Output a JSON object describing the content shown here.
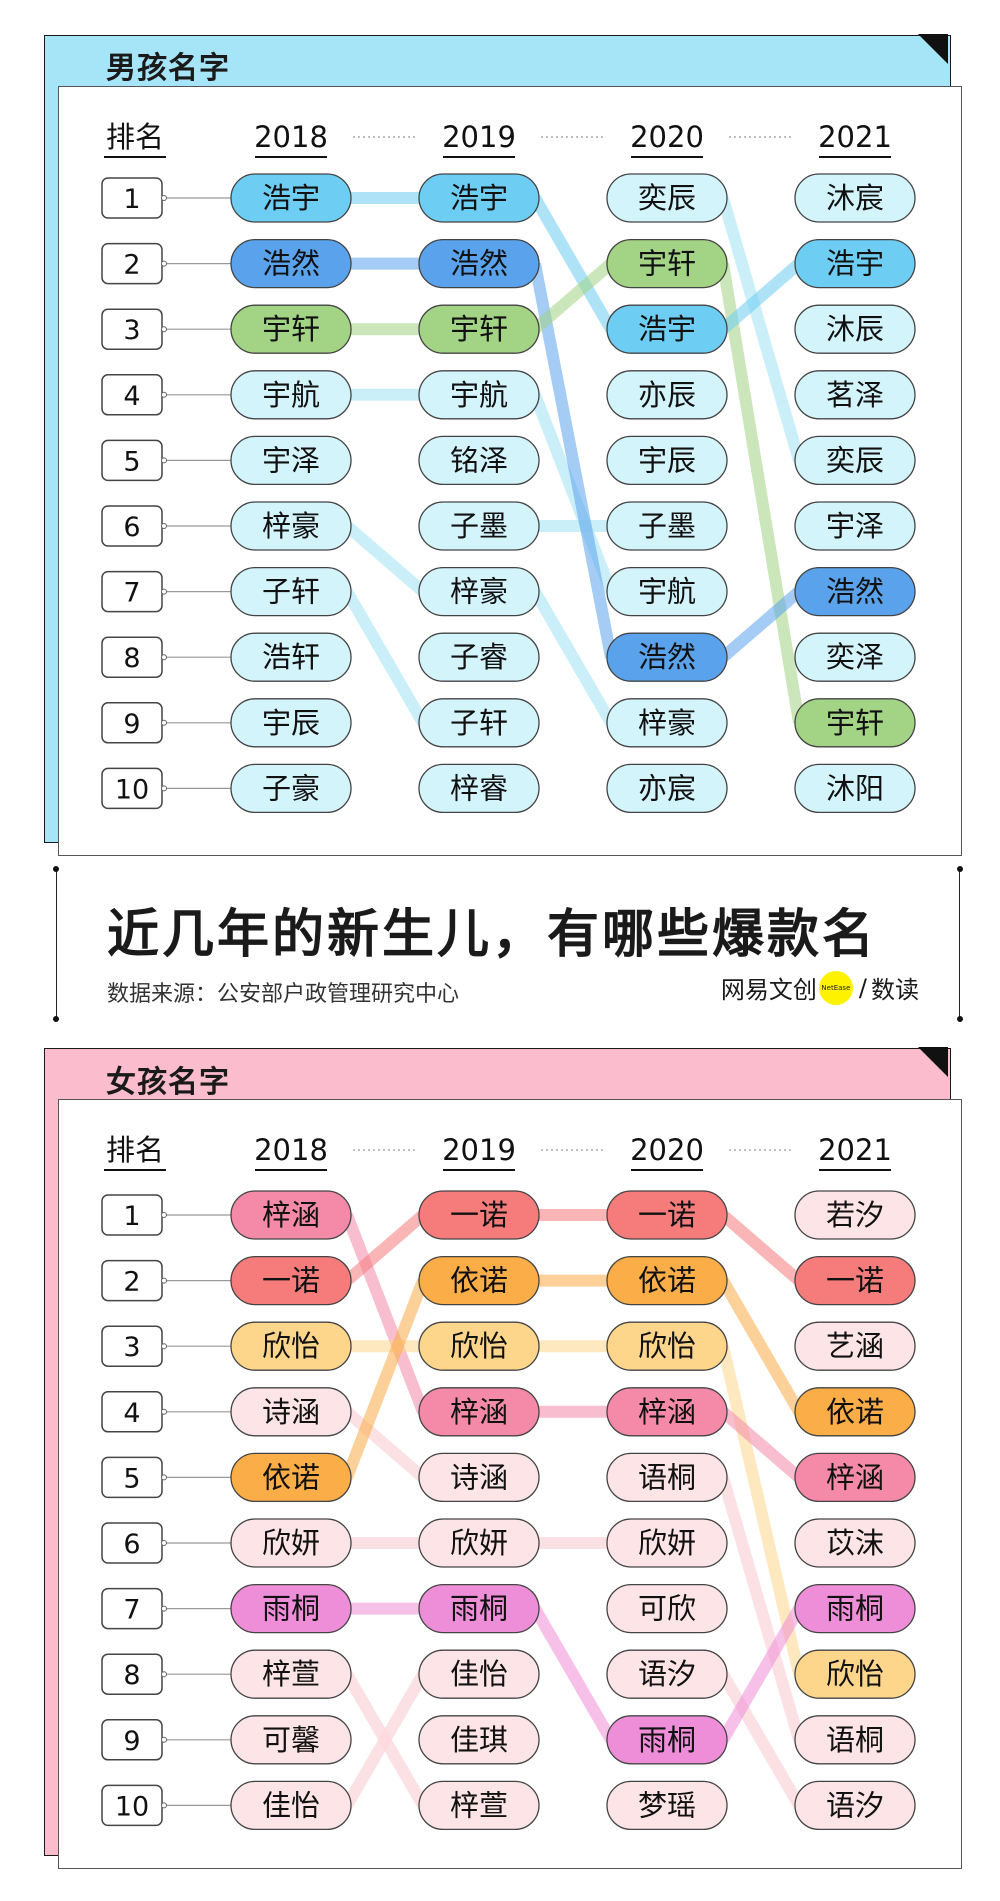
{
  "main_title": "近几年的新生儿，有哪些爆款名",
  "source": "数据来源：公安部户政管理研究中心",
  "logo": {
    "text_left": "网易文创",
    "badge": "NetEase",
    "separator": "/",
    "text_right": "数读"
  },
  "colors": {
    "boys_bg": "#a6e4f7",
    "girls_bg": "#fbbccd"
  },
  "chart_data": [
    {
      "type": "table",
      "title": "男孩名字",
      "rank_header": "排名",
      "years": [
        "2018",
        "2019",
        "2020",
        "2021"
      ],
      "ranks": [
        "1",
        "2",
        "3",
        "4",
        "5",
        "6",
        "7",
        "8",
        "9",
        "10"
      ],
      "columns": [
        [
          "浩宇",
          "浩然",
          "宇轩",
          "宇航",
          "宇泽",
          "梓豪",
          "子轩",
          "浩轩",
          "宇辰",
          "子豪"
        ],
        [
          "浩宇",
          "浩然",
          "宇轩",
          "宇航",
          "铭泽",
          "子墨",
          "梓豪",
          "子睿",
          "子轩",
          "梓睿"
        ],
        [
          "奕辰",
          "宇轩",
          "浩宇",
          "亦辰",
          "宇辰",
          "子墨",
          "宇航",
          "浩然",
          "梓豪",
          "亦宸"
        ],
        [
          "沐宸",
          "浩宇",
          "沐辰",
          "茗泽",
          "奕辰",
          "宇泽",
          "浩然",
          "奕泽",
          "宇轩",
          "沐阳"
        ]
      ],
      "highlight_colors": {
        "浩宇": "#6dcdf2",
        "浩然": "#5aa3ec",
        "宇轩": "#a3d384"
      },
      "default_fill": "#d4f4fb",
      "default_line": "#b9eaf8"
    },
    {
      "type": "table",
      "title": "女孩名字",
      "rank_header": "排名",
      "years": [
        "2018",
        "2019",
        "2020",
        "2021"
      ],
      "ranks": [
        "1",
        "2",
        "3",
        "4",
        "5",
        "6",
        "7",
        "8",
        "9",
        "10"
      ],
      "columns": [
        [
          "梓涵",
          "一诺",
          "欣怡",
          "诗涵",
          "依诺",
          "欣妍",
          "雨桐",
          "梓萱",
          "可馨",
          "佳怡"
        ],
        [
          "一诺",
          "依诺",
          "欣怡",
          "梓涵",
          "诗涵",
          "欣妍",
          "雨桐",
          "佳怡",
          "佳琪",
          "梓萱"
        ],
        [
          "一诺",
          "依诺",
          "欣怡",
          "梓涵",
          "语桐",
          "欣妍",
          "可欣",
          "语汐",
          "雨桐",
          "梦瑶"
        ],
        [
          "若汐",
          "一诺",
          "艺涵",
          "依诺",
          "梓涵",
          "苡沫",
          "雨桐",
          "欣怡",
          "语桐",
          "语汐"
        ]
      ],
      "highlight_colors": {
        "梓涵": "#f48aa8",
        "一诺": "#f67c7c",
        "依诺": "#fbad47",
        "欣怡": "#fdd68c",
        "雨桐": "#ef8ed8"
      },
      "default_fill": "#fde4e6",
      "default_line": "#fcd8dc"
    }
  ]
}
